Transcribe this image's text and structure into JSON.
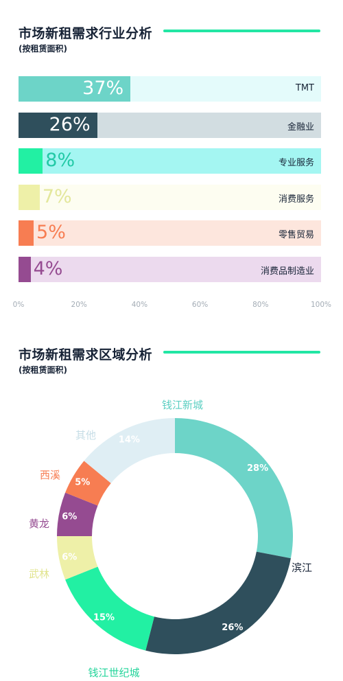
{
  "chart_data": [
    {
      "type": "bar",
      "orientation": "horizontal",
      "title": "市场新租需求行业分析",
      "subtitle": "(按租赁面积)",
      "unit": "%",
      "xlim": [
        0,
        100
      ],
      "ticks": [
        "0%",
        "20%",
        "40%",
        "60%",
        "80%",
        "100%"
      ],
      "grid": false,
      "items": [
        {
          "category": "TMT",
          "value": 37,
          "label": "37%",
          "color": "#6dd4c8",
          "bg": "#e4fbfb",
          "text_color": "#ffffff"
        },
        {
          "category": "金融业",
          "value": 26,
          "label": "26%",
          "color": "#2f4f5c",
          "bg": "#d2dde1",
          "text_color": "#ffffff"
        },
        {
          "category": "专业服务",
          "value": 8,
          "label": "8%",
          "color": "#22f0a3",
          "bg": "#a4f6f2",
          "text_color": "#22c9a6"
        },
        {
          "category": "消费服务",
          "value": 7,
          "label": "7%",
          "color": "#eef0a8",
          "bg": "#fdfdf1",
          "text_color": "#e3e79c"
        },
        {
          "category": "零售贸易",
          "value": 5,
          "label": "5%",
          "color": "#f77d52",
          "bg": "#fde6dd",
          "text_color": "#f77d52"
        },
        {
          "category": "消费品制造业",
          "value": 4,
          "label": "4%",
          "color": "#954b91",
          "bg": "#ecdaee",
          "text_color": "#954b91"
        }
      ]
    },
    {
      "type": "pie",
      "donut": true,
      "title": "市场新租需求区域分析",
      "subtitle": "(按租赁面积)",
      "slices": [
        {
          "label": "钱江新城",
          "value": 28,
          "pct": "28%",
          "color": "#6dd4c8",
          "label_color": "#5ccfc2",
          "pct_color": "#ffffff"
        },
        {
          "label": "滨江",
          "value": 26,
          "pct": "26%",
          "color": "#2f4f5c",
          "label_color": "#162235",
          "pct_color": "#ffffff"
        },
        {
          "label": "钱江世纪城",
          "value": 15,
          "pct": "15%",
          "color": "#22f0a3",
          "label_color": "#22d49a",
          "pct_color": "#ffffff"
        },
        {
          "label": "武林",
          "value": 6,
          "pct": "6%",
          "color": "#eef0a8",
          "label_color": "#e1e48e",
          "pct_color": "#ffffff"
        },
        {
          "label": "黄龙",
          "value": 6,
          "pct": "6%",
          "color": "#954b91",
          "label_color": "#954b91",
          "pct_color": "#ffffff"
        },
        {
          "label": "西溪",
          "value": 5,
          "pct": "5%",
          "color": "#f77d52",
          "label_color": "#f77d52",
          "pct_color": "#ffffff"
        },
        {
          "label": "其他",
          "value": 14,
          "pct": "14%",
          "color": "#dfeef4",
          "label_color": "#c6dde6",
          "pct_color": "#ffffff"
        }
      ]
    }
  ]
}
